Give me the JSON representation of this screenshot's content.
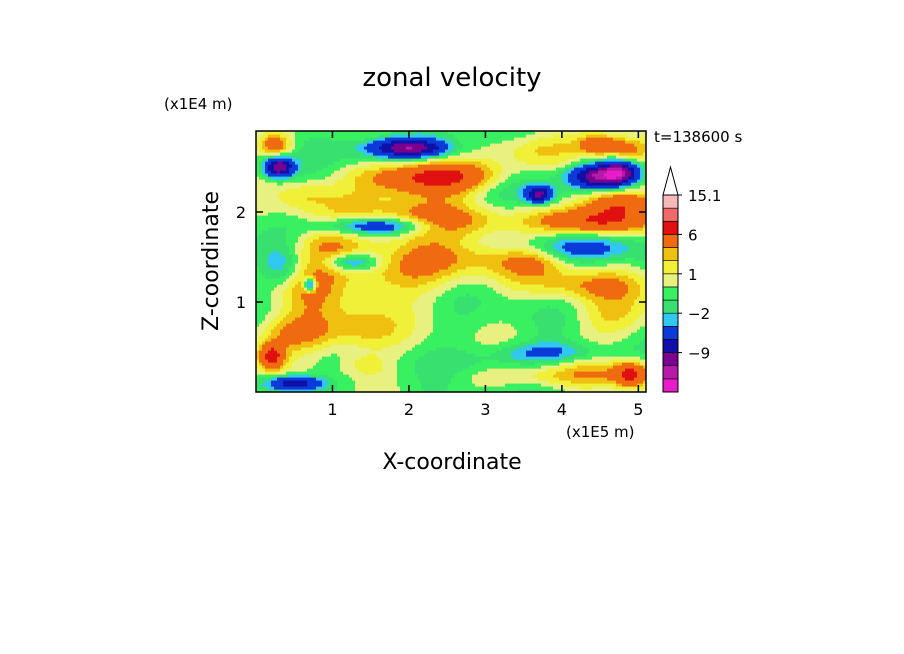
{
  "chart_data": {
    "type": "heatmap",
    "title": "zonal velocity",
    "xlabel": "X-coordinate",
    "ylabel": "Z-coordinate",
    "x_unit": "(x1E5 m)",
    "y_unit": "(x1E4 m)",
    "time_label": "t=138600 s",
    "xlim": [
      0,
      5.1
    ],
    "ylim": [
      0,
      2.9
    ],
    "x_ticks": [
      {
        "value": 1,
        "label": "1"
      },
      {
        "value": 2,
        "label": "2"
      },
      {
        "value": 3,
        "label": "3"
      },
      {
        "value": 4,
        "label": "4"
      },
      {
        "value": 5,
        "label": "5"
      }
    ],
    "y_ticks": [
      {
        "value": 1,
        "label": "1"
      },
      {
        "value": 2,
        "label": "2"
      }
    ],
    "colorbar": {
      "levels": [
        -15,
        -12,
        -9,
        -6,
        -3,
        -2,
        -1,
        0,
        1,
        2,
        3,
        6,
        9,
        12,
        15.1
      ],
      "colors": [
        "#e81cc8",
        "#b81aa8",
        "#7a0090",
        "#1010a8",
        "#0a3ad8",
        "#30c8f0",
        "#38e070",
        "#38f060",
        "#e8f080",
        "#f0f038",
        "#f0c010",
        "#f06a10",
        "#e01010",
        "#f06a6a",
        "#f8b8b8"
      ],
      "extend_max_color": "#ffffff",
      "labels": [
        {
          "value": 15.1,
          "label": "15.1"
        },
        {
          "value": 6,
          "label": "6"
        },
        {
          "value": 1,
          "label": "1"
        },
        {
          "value": -2,
          "label": "−2"
        },
        {
          "value": -9,
          "label": "−9"
        }
      ]
    },
    "field": {
      "x_range": [
        0,
        5.1
      ],
      "z_range": [
        0,
        2.9
      ],
      "background_value": -0.5,
      "features": [
        {
          "x": 0.3,
          "z": 2.5,
          "sx": 0.12,
          "sz": 0.07,
          "amp": -11
        },
        {
          "x": 0.25,
          "z": 2.75,
          "sx": 0.15,
          "sz": 0.08,
          "amp": 5
        },
        {
          "x": 0.6,
          "z": 2.2,
          "sx": 0.25,
          "sz": 0.12,
          "amp": 2
        },
        {
          "x": 0.7,
          "z": 1.2,
          "sx": 0.3,
          "sz": 0.3,
          "amp": 2.5
        },
        {
          "x": 0.7,
          "z": 1.2,
          "sx": 0.05,
          "sz": 0.05,
          "amp": -7
        },
        {
          "x": 0.35,
          "z": 1.4,
          "sx": 0.2,
          "sz": 0.15,
          "amp": -2.5
        },
        {
          "x": 0.5,
          "z": 0.65,
          "sx": 0.4,
          "sz": 0.15,
          "amp": 4
        },
        {
          "x": 0.2,
          "z": 0.4,
          "sx": 0.12,
          "sz": 0.1,
          "amp": 7
        },
        {
          "x": 0.5,
          "z": 0.1,
          "sx": 0.25,
          "sz": 0.06,
          "amp": -8
        },
        {
          "x": 2.3,
          "z": 2.4,
          "sx": 0.6,
          "sz": 0.12,
          "amp": 7
        },
        {
          "x": 2.0,
          "z": 2.1,
          "sx": 0.8,
          "sz": 0.2,
          "amp": 3
        },
        {
          "x": 2.0,
          "z": 2.72,
          "sx": 0.3,
          "sz": 0.06,
          "amp": -9
        },
        {
          "x": 1.9,
          "z": 2.7,
          "sx": 0.6,
          "sz": 0.12,
          "amp": -3
        },
        {
          "x": 1.6,
          "z": 1.85,
          "sx": 0.5,
          "sz": 0.07,
          "amp": -6
        },
        {
          "x": 1.25,
          "z": 1.45,
          "sx": 0.25,
          "sz": 0.07,
          "amp": -5
        },
        {
          "x": 1.0,
          "z": 1.6,
          "sx": 0.35,
          "sz": 0.15,
          "amp": 2.5
        },
        {
          "x": 1.8,
          "z": 1.3,
          "sx": 0.7,
          "sz": 0.18,
          "amp": 3
        },
        {
          "x": 2.5,
          "z": 1.5,
          "sx": 0.8,
          "sz": 0.15,
          "amp": 2.5
        },
        {
          "x": 2.6,
          "z": 1.9,
          "sx": 0.6,
          "sz": 0.12,
          "amp": 3.5
        },
        {
          "x": 1.4,
          "z": 0.7,
          "sx": 0.35,
          "sz": 0.2,
          "amp": 3
        },
        {
          "x": 1.4,
          "z": 0.3,
          "sx": 0.25,
          "sz": 0.1,
          "amp": 2
        },
        {
          "x": 3.7,
          "z": 2.7,
          "sx": 0.45,
          "sz": 0.15,
          "amp": 3
        },
        {
          "x": 3.6,
          "z": 2.3,
          "sx": 0.5,
          "sz": 0.15,
          "amp": -2.5
        },
        {
          "x": 4.4,
          "z": 1.9,
          "sx": 0.5,
          "sz": 0.1,
          "amp": 7
        },
        {
          "x": 4.7,
          "z": 2.1,
          "sx": 0.35,
          "sz": 0.1,
          "amp": 5
        },
        {
          "x": 4.5,
          "z": 2.4,
          "sx": 0.25,
          "sz": 0.08,
          "amp": -11
        },
        {
          "x": 4.75,
          "z": 2.45,
          "sx": 0.15,
          "sz": 0.08,
          "amp": -9
        },
        {
          "x": 3.7,
          "z": 2.2,
          "sx": 0.12,
          "sz": 0.06,
          "amp": -9
        },
        {
          "x": 4.5,
          "z": 2.75,
          "sx": 0.2,
          "sz": 0.08,
          "amp": 6
        },
        {
          "x": 4.2,
          "z": 1.6,
          "sx": 0.6,
          "sz": 0.1,
          "amp": -3
        },
        {
          "x": 4.3,
          "z": 1.2,
          "sx": 0.6,
          "sz": 0.12,
          "amp": 3
        },
        {
          "x": 3.6,
          "z": 1.45,
          "sx": 0.3,
          "sz": 0.12,
          "amp": 2.5
        },
        {
          "x": 4.7,
          "z": 0.85,
          "sx": 0.4,
          "sz": 0.2,
          "amp": 2.5
        },
        {
          "x": 3.8,
          "z": 0.45,
          "sx": 0.5,
          "sz": 0.08,
          "amp": -3
        },
        {
          "x": 4.0,
          "z": 0.2,
          "sx": 0.9,
          "sz": 0.1,
          "amp": 3
        },
        {
          "x": 4.9,
          "z": 0.2,
          "sx": 0.15,
          "sz": 0.1,
          "amp": 6
        },
        {
          "x": 3.2,
          "z": 0.3,
          "sx": 0.6,
          "sz": 0.1,
          "amp": -1.5
        },
        {
          "x": 4.9,
          "z": 2.7,
          "sx": 0.2,
          "sz": 0.1,
          "amp": 4
        }
      ]
    }
  }
}
